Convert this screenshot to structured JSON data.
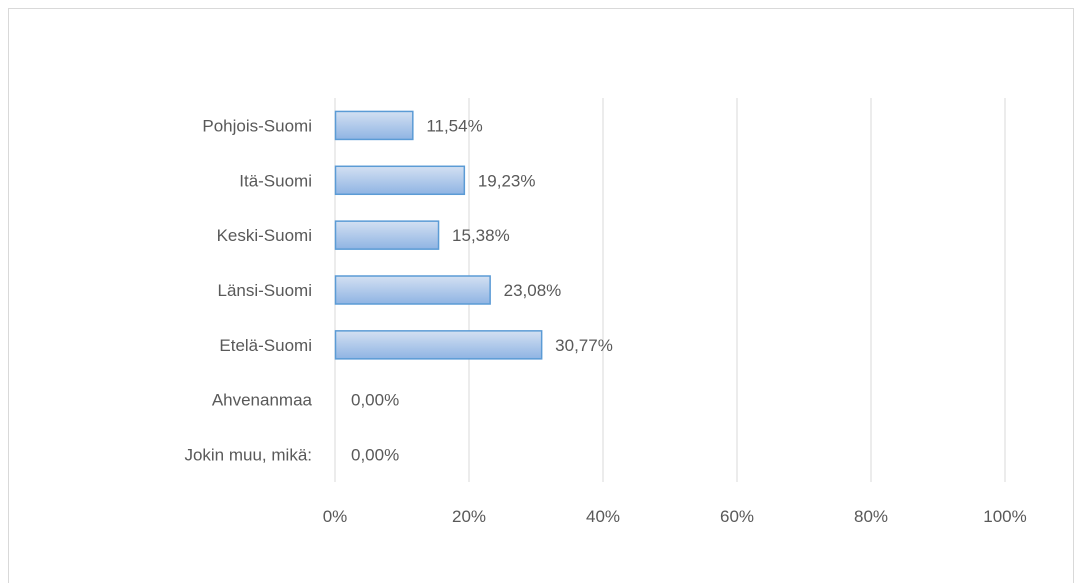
{
  "chart_data": {
    "type": "bar",
    "orientation": "horizontal",
    "categories": [
      "Pohjois-Suomi",
      "Itä-Suomi",
      "Keski-Suomi",
      "Länsi-Suomi",
      "Etelä-Suomi",
      "Ahvenanmaa",
      "Jokin muu, mikä:"
    ],
    "values": [
      11.54,
      19.23,
      15.38,
      23.08,
      30.77,
      0.0,
      0.0
    ],
    "value_labels": [
      "11,54%",
      "19,23%",
      "15,38%",
      "23,08%",
      "30,77%",
      "0,00%",
      "0,00%"
    ],
    "xlim": [
      0,
      100
    ],
    "x_ticks": [
      0,
      20,
      40,
      60,
      80,
      100
    ],
    "x_tick_labels": [
      "0%",
      "20%",
      "40%",
      "60%",
      "80%",
      "100%"
    ],
    "grid": true,
    "colors": {
      "bar_fill_top": "#c5d6ee",
      "bar_fill_bottom": "#8db3e2",
      "bar_stroke": "#5b9bd5",
      "grid": "#d9d9d9",
      "text": "#595959"
    }
  }
}
